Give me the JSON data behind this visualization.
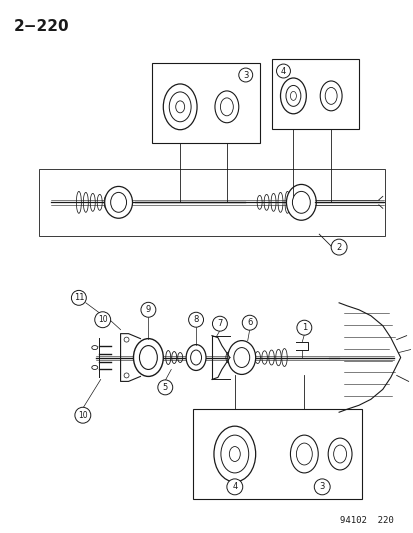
{
  "title": "2−220",
  "footer": "94102  220",
  "bg_color": "#ffffff",
  "fg_color": "#1a1a1a",
  "title_fontsize": 11,
  "footer_fontsize": 6.5
}
